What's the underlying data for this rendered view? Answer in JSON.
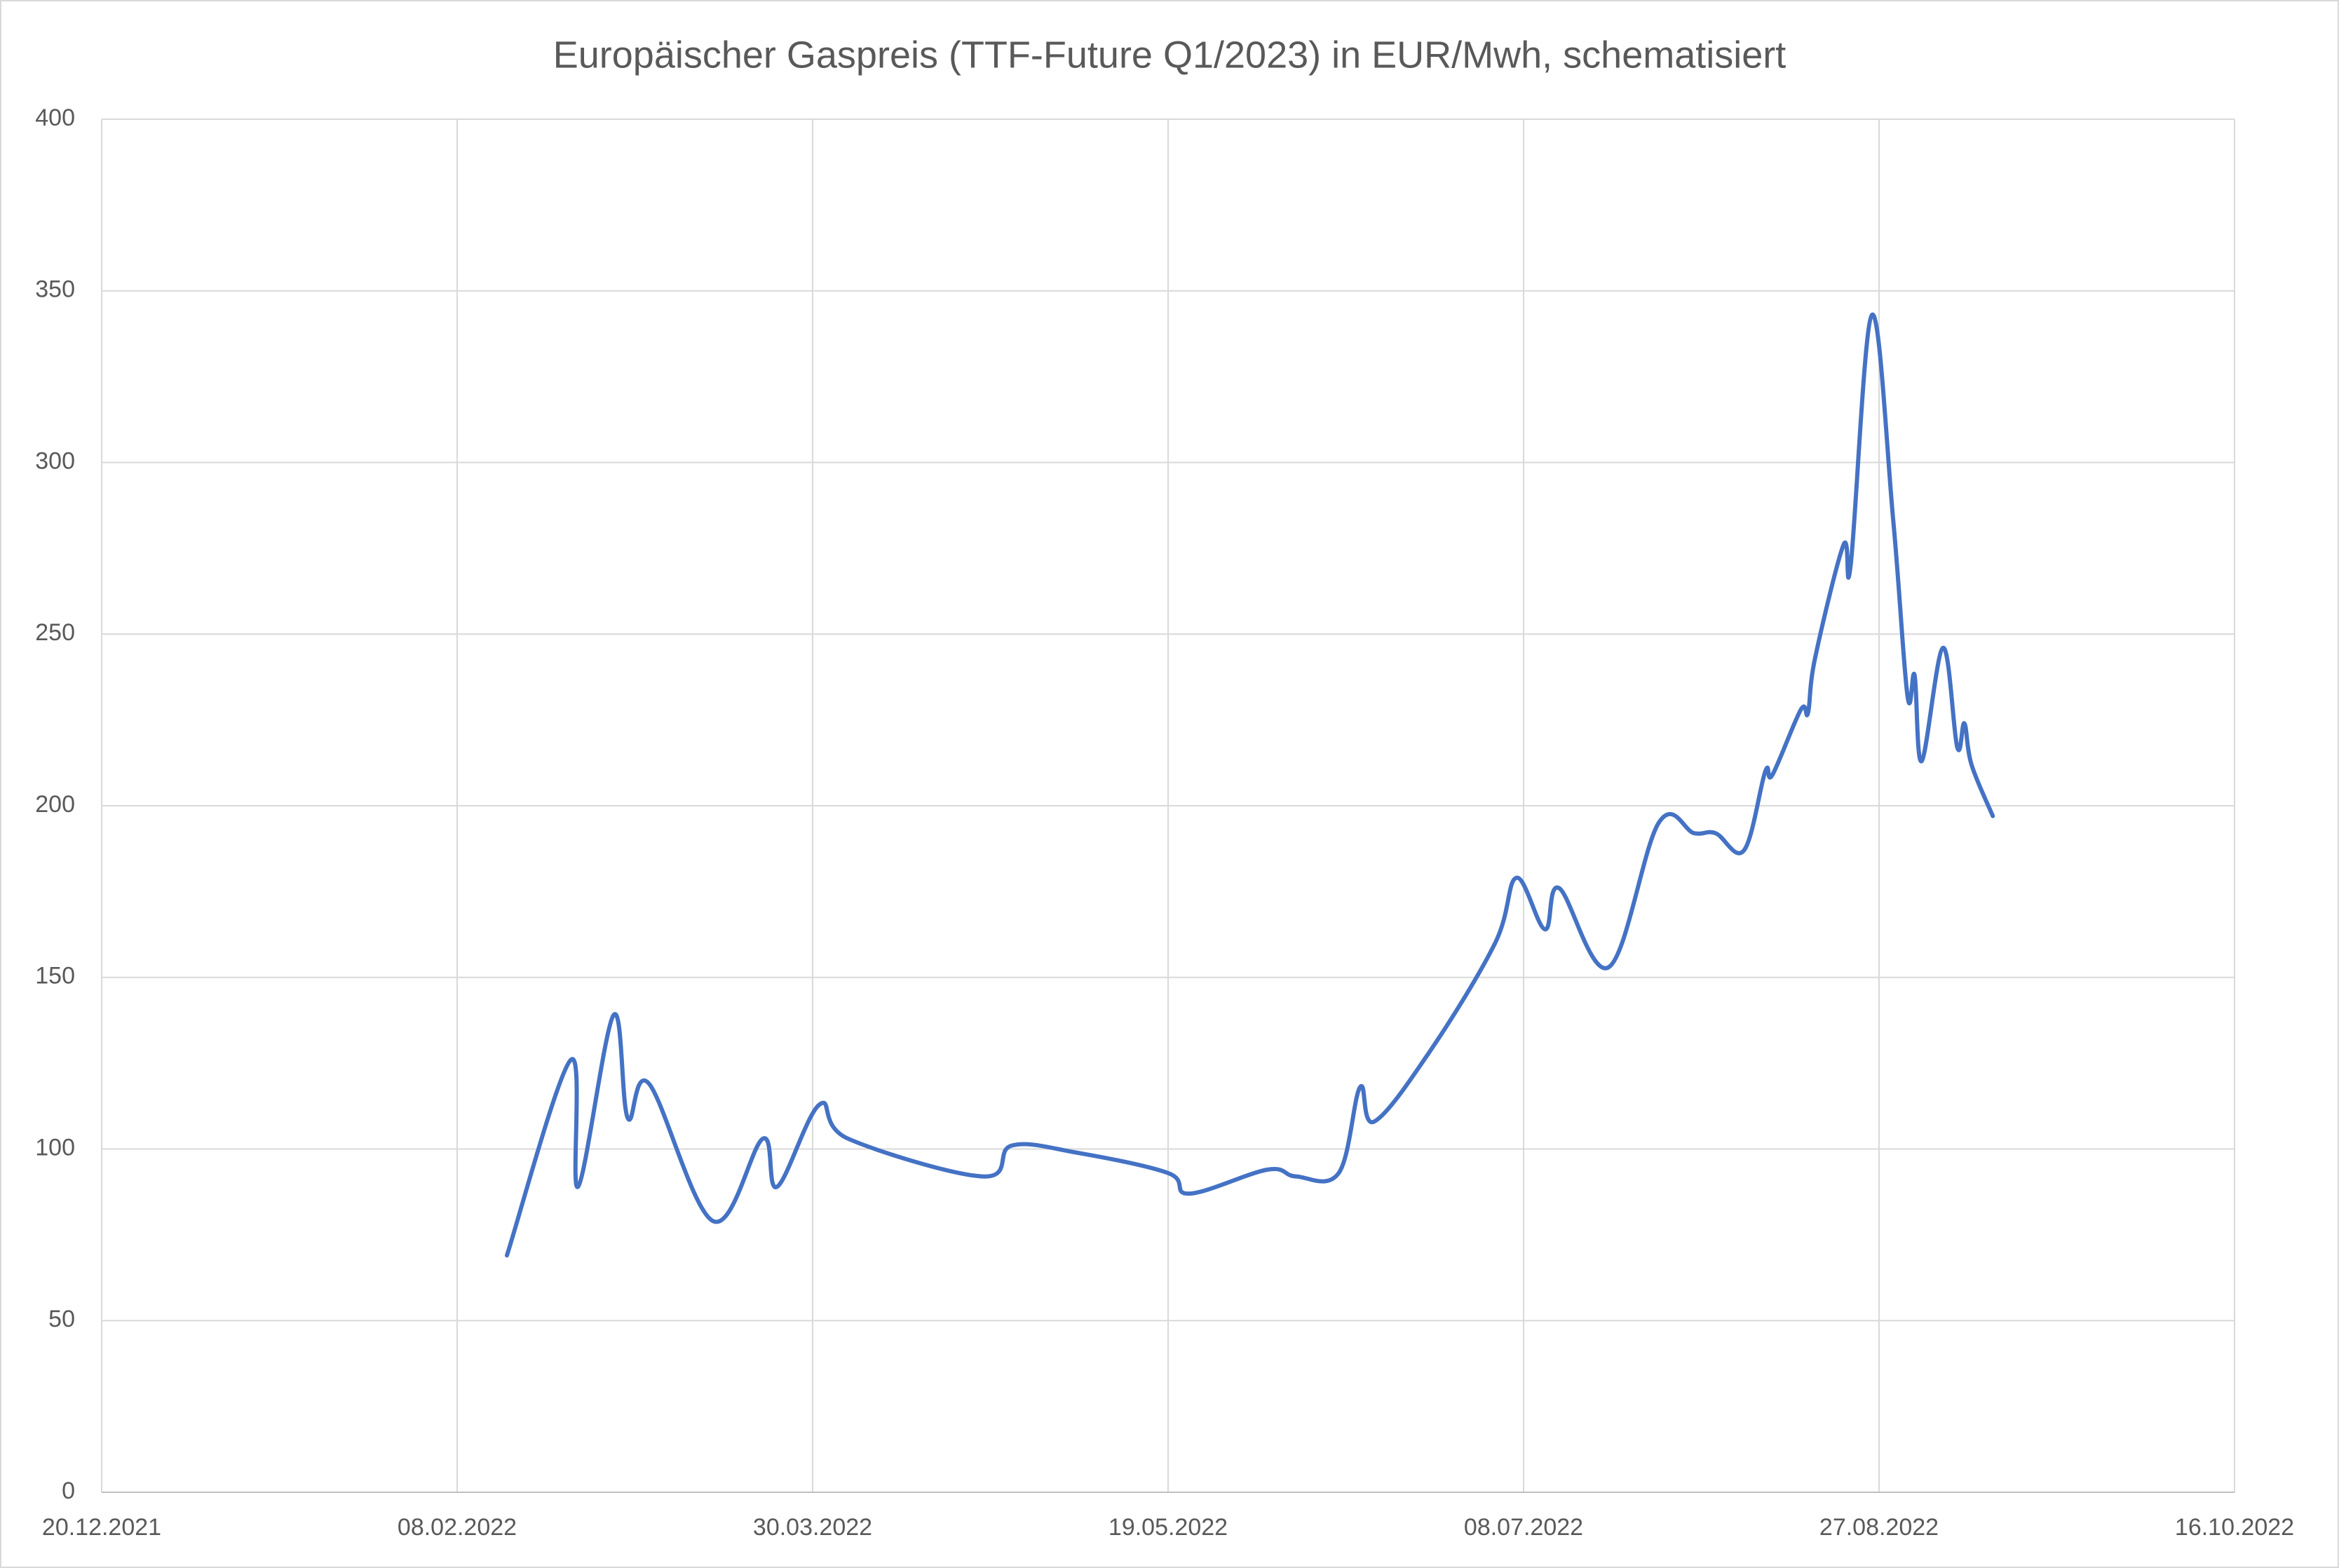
{
  "chart_data": {
    "type": "line",
    "title": "Europäischer Gaspreis (TTF-Future Q1/2023) in EUR/Mwh, schematisiert",
    "x": [
      "15.02.2022",
      "24.02.2022",
      "25.02.2022",
      "02.03.2022",
      "04.03.2022",
      "07.03.2022",
      "16.03.2022",
      "23.03.2022",
      "25.03.2022",
      "31.03.2022",
      "04.04.2022",
      "23.04.2022",
      "27.04.2022",
      "06.05.2022",
      "19.05.2022",
      "22.05.2022",
      "02.06.2022",
      "06.06.2022",
      "12.06.2022",
      "15.06.2022",
      "17.06.2022",
      "25.06.2022",
      "04.07.2022",
      "07.07.2022",
      "11.07.2022",
      "13.07.2022",
      "20.07.2022",
      "27.07.2022",
      "01.08.2022",
      "04.08.2022",
      "08.08.2022",
      "11.08.2022",
      "12.08.2022",
      "16.08.2022",
      "17.08.2022",
      "18.08.2022",
      "22.08.2022",
      "23.08.2022",
      "26.08.2022",
      "29.08.2022",
      "31.08.2022",
      "01.09.2022",
      "02.09.2022",
      "05.09.2022",
      "07.09.2022",
      "08.09.2022",
      "09.09.2022",
      "12.09.2022"
    ],
    "series": [
      {
        "color": "#4472c4",
        "values": [
          69,
          126,
          89,
          139,
          109,
          119,
          79,
          103,
          89,
          113,
          103,
          92,
          101,
          99,
          93,
          87,
          94,
          92,
          93,
          118,
          108,
          129,
          160,
          179,
          164,
          176,
          153,
          195,
          192,
          192,
          187,
          210,
          209,
          228,
          227,
          243,
          276,
          270,
          343,
          283,
          232,
          238,
          213,
          246,
          217,
          224,
          212,
          197
        ]
      }
    ],
    "xlim": [
      "20.12.2021",
      "16.10.2022"
    ],
    "xticks": [
      "20.12.2021",
      "08.02.2022",
      "30.03.2022",
      "19.05.2022",
      "08.07.2022",
      "27.08.2022",
      "16.10.2022"
    ],
    "ylim": [
      0,
      400
    ],
    "yticks": [
      0,
      50,
      100,
      150,
      200,
      250,
      300,
      350,
      400
    ],
    "grid": true
  }
}
